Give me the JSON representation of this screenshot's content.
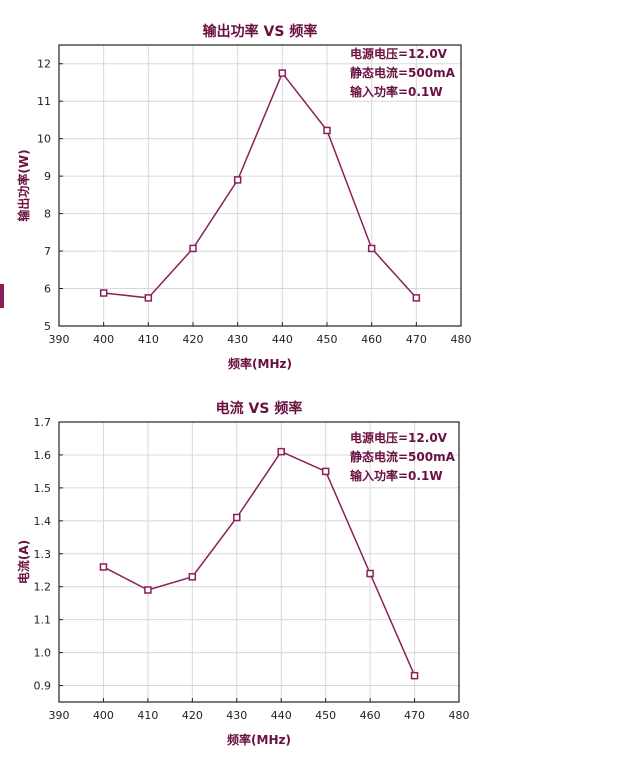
{
  "colors": {
    "series": "#8b1f5c",
    "text": "#6a1040",
    "grid": "#d8d8d8"
  },
  "chart_data": [
    {
      "type": "line",
      "title": "输出功率 VS 频率",
      "xlabel": "频率(MHz)",
      "ylabel": "输出功率(W)",
      "xlim": [
        390,
        480
      ],
      "ylim": [
        5,
        12.5
      ],
      "xticks": [
        390,
        400,
        410,
        420,
        430,
        440,
        450,
        460,
        470,
        480
      ],
      "yticks": [
        5,
        6,
        7,
        8,
        9,
        10,
        11,
        12
      ],
      "grid": true,
      "annotations": [
        "电源电压=12.0V",
        "静态电流=500mA",
        "输入功率=0.1W"
      ],
      "annotation_placement": "top-right",
      "series": [
        {
          "x": [
            400,
            410,
            420,
            430,
            440,
            450,
            460,
            470
          ],
          "y": [
            5.88,
            5.75,
            7.07,
            8.9,
            11.75,
            10.22,
            7.07,
            5.75
          ]
        }
      ]
    },
    {
      "type": "line",
      "title": "电流 VS 频率",
      "xlabel": "频率(MHz)",
      "ylabel": "电流(A)",
      "xlim": [
        390,
        480
      ],
      "ylim": [
        0.85,
        1.7
      ],
      "xticks": [
        390,
        400,
        410,
        420,
        430,
        440,
        450,
        460,
        470,
        480
      ],
      "yticks": [
        "0.9",
        "1.0",
        "1.1",
        "1.2",
        "1.3",
        "1.4",
        "1.5",
        "1.6",
        "1.7"
      ],
      "grid": true,
      "annotations": [
        "电源电压=12.0V",
        "静态电流=500mA",
        "输入功率=0.1W"
      ],
      "annotation_placement": "top-right",
      "series": [
        {
          "x": [
            400,
            410,
            420,
            430,
            440,
            450,
            460,
            470
          ],
          "y": [
            1.26,
            1.19,
            1.23,
            1.41,
            1.61,
            1.55,
            1.24,
            0.93
          ]
        }
      ]
    }
  ]
}
